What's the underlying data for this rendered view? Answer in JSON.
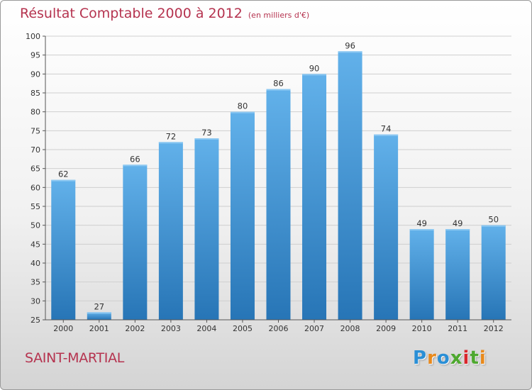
{
  "title": "Résultat Comptable 2000 à 2012",
  "subtitle": "(en milliers d'€)",
  "commune": "SAINT-MARTIAL",
  "logo": {
    "text": "Proxiti",
    "letters": [
      "P",
      "r",
      "o",
      "x",
      "i",
      "t",
      "i"
    ],
    "colors": [
      "#2a8fd6",
      "#e8891c",
      "#2a8fd6",
      "#4ea82f",
      "#d9262c",
      "#4ea82f",
      "#e8891c"
    ]
  },
  "colors": {
    "bar_top": "#62b1ea",
    "bar_bottom": "#2775b6",
    "title": "#b5334f",
    "grid": "#cfcfcf"
  },
  "chart_data": {
    "type": "bar",
    "title": "Résultat Comptable 2000 à 2012",
    "subtitle": "(en milliers d'€)",
    "categories": [
      "2000",
      "2001",
      "2002",
      "2003",
      "2004",
      "2005",
      "2006",
      "2007",
      "2008",
      "2009",
      "2010",
      "2011",
      "2012"
    ],
    "values": [
      62,
      27,
      66,
      72,
      73,
      80,
      86,
      90,
      96,
      74,
      49,
      49,
      50
    ],
    "ylim": [
      25,
      100
    ],
    "yticks": [
      25,
      30,
      35,
      40,
      45,
      50,
      55,
      60,
      65,
      70,
      75,
      80,
      85,
      90,
      95,
      100
    ],
    "grid": true,
    "legend": "none"
  }
}
